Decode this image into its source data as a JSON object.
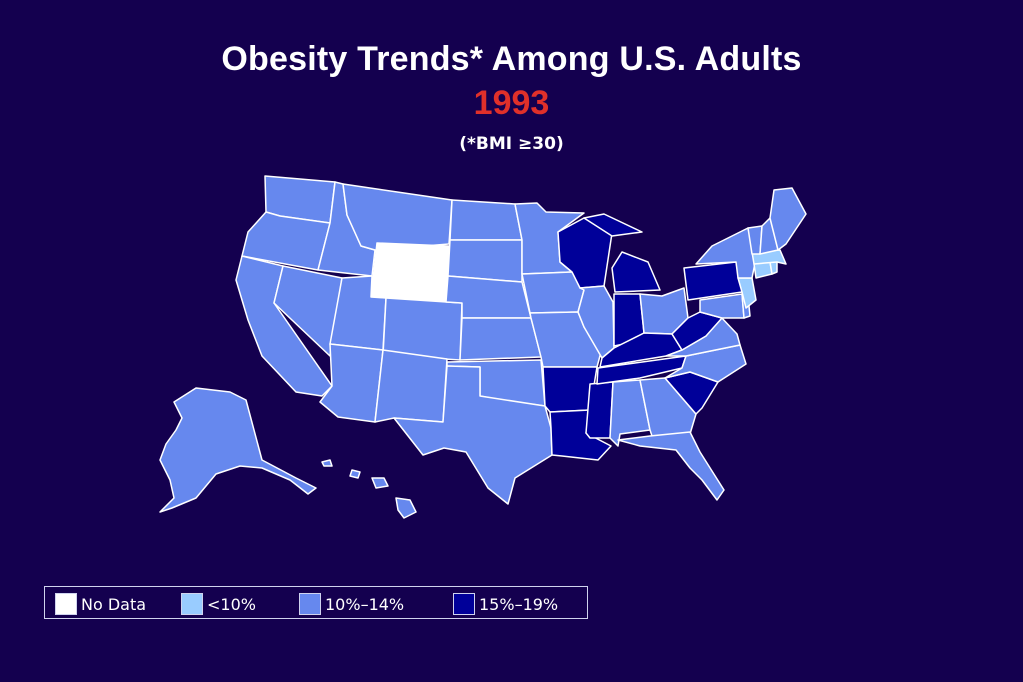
{
  "title": "Obesity Trends* Among U.S. Adults",
  "year": "1993",
  "subtitle": "(*BMI ≥30)",
  "colors": {
    "background": "#14004f",
    "year_text": "#e0302a",
    "no_data": "#ffffff",
    "lt10": "#99ccff",
    "p10_14": "#6688ee",
    "p15_19": "#000099",
    "border": "#ffffff"
  },
  "legend": [
    {
      "label": "No Data",
      "category": "no_data"
    },
    {
      "label": "<10%",
      "category": "lt10"
    },
    {
      "label": "10%–14%",
      "category": "p10_14"
    },
    {
      "label": "15%–19%",
      "category": "p15_19"
    }
  ],
  "states": {
    "AL": "p10_14",
    "AK": "p10_14",
    "AZ": "p10_14",
    "AR": "p15_19",
    "CA": "p10_14",
    "CO": "p10_14",
    "CT": "lt10",
    "DE": "p10_14",
    "FL": "p10_14",
    "GA": "p10_14",
    "HI": "p10_14",
    "ID": "p10_14",
    "IL": "p10_14",
    "IN": "p15_19",
    "IA": "p10_14",
    "KS": "p10_14",
    "KY": "p15_19",
    "LA": "p15_19",
    "ME": "p10_14",
    "MD": "p10_14",
    "MA": "lt10",
    "MI": "p15_19",
    "MN": "p10_14",
    "MS": "p15_19",
    "MO": "p10_14",
    "MT": "p10_14",
    "NE": "p10_14",
    "NV": "p10_14",
    "NH": "p10_14",
    "NJ": "lt10",
    "NM": "p10_14",
    "NY": "p10_14",
    "NC": "p10_14",
    "ND": "p10_14",
    "OH": "p10_14",
    "OK": "p10_14",
    "OR": "p10_14",
    "PA": "p15_19",
    "RI": "lt10",
    "SC": "p15_19",
    "SD": "p10_14",
    "TN": "p15_19",
    "TX": "p10_14",
    "UT": "p10_14",
    "VT": "p10_14",
    "VA": "p10_14",
    "WA": "p10_14",
    "WV": "p15_19",
    "WI": "p15_19",
    "WY": "no_data"
  }
}
